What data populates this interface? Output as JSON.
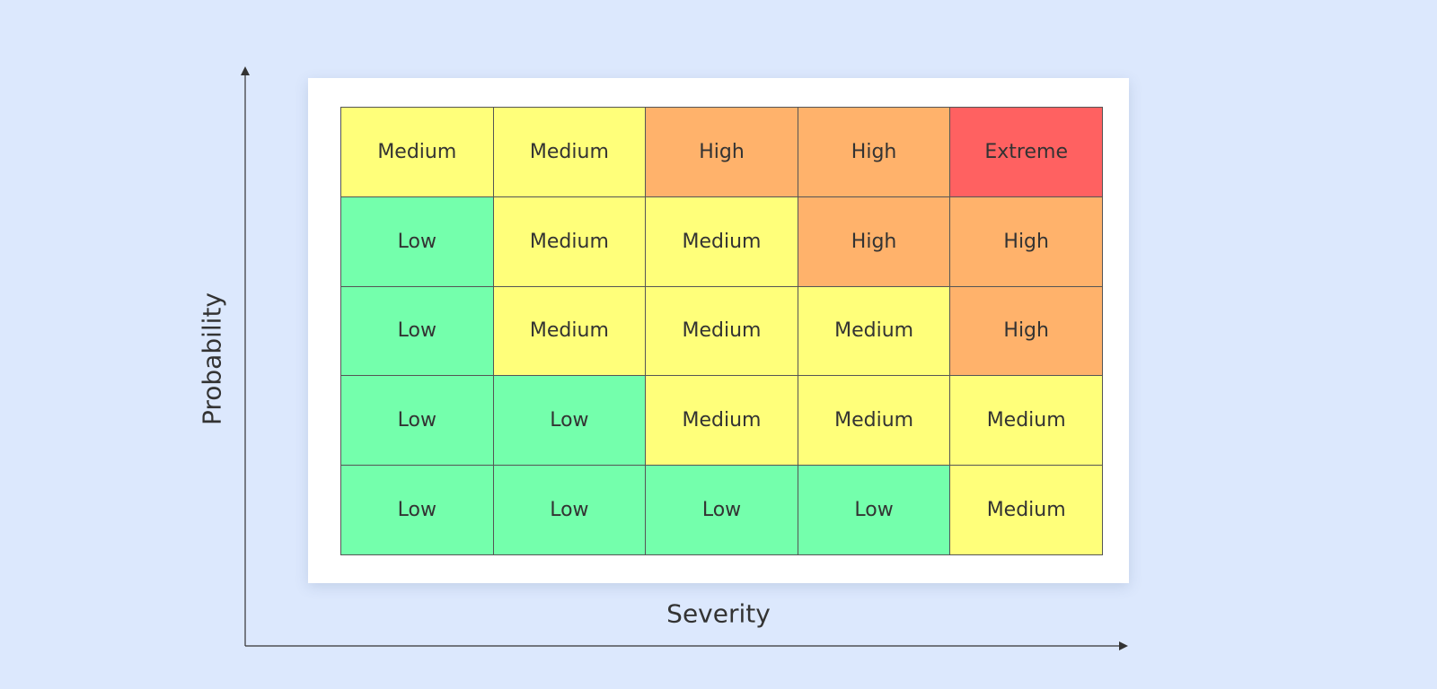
{
  "axes": {
    "y_label": "Probability",
    "x_label": "Severity"
  },
  "colors": {
    "background": "#dce8fd",
    "low": "#74ffac",
    "medium": "#ffff7a",
    "high": "#ffb26b",
    "extreme": "#ff6161"
  },
  "matrix": {
    "rows": [
      [
        "Medium",
        "Medium",
        "High",
        "High",
        "Extreme"
      ],
      [
        "Low",
        "Medium",
        "Medium",
        "High",
        "High"
      ],
      [
        "Low",
        "Medium",
        "Medium",
        "Medium",
        "High"
      ],
      [
        "Low",
        "Low",
        "Medium",
        "Medium",
        "Medium"
      ],
      [
        "Low",
        "Low",
        "Low",
        "Low",
        "Medium"
      ]
    ]
  }
}
